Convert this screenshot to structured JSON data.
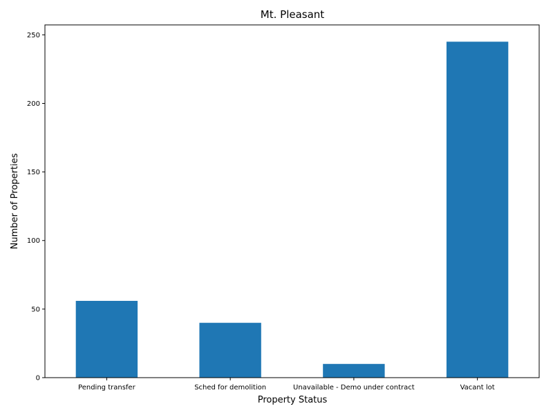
{
  "chart_data": {
    "type": "bar",
    "title": "Mt. Pleasant",
    "xlabel": "Property Status",
    "ylabel": "Number of Properties",
    "categories": [
      "Pending transfer",
      "Sched for demolition",
      "Unavailable - Demo under contract",
      "Vacant lot"
    ],
    "values": [
      56,
      40,
      10,
      245
    ],
    "ylim": [
      0,
      257.25
    ],
    "yticks": [
      0,
      50,
      100,
      150,
      200,
      250
    ],
    "bar_color": "#1f77b4",
    "grid": false,
    "legend": "none"
  }
}
